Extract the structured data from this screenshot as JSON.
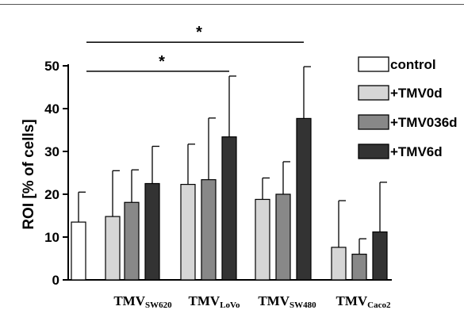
{
  "chart_data": {
    "type": "bar",
    "ylabel": "ROI [% of cells]",
    "ylim": [
      0,
      50
    ],
    "yticks": [
      0,
      10,
      20,
      30,
      40,
      50
    ],
    "grid": false,
    "legend_position": "right",
    "legend": [
      {
        "name": "control",
        "color": "#ffffff"
      },
      {
        "name": "+TMV0d",
        "color": "#d6d6d6"
      },
      {
        "name": "+TMV036d",
        "color": "#888888"
      },
      {
        "name": "+TMV6d",
        "color": "#333333"
      }
    ],
    "bars": [
      {
        "series": "control",
        "group": "control",
        "value": 13.5,
        "error": 7.0
      },
      {
        "series": "+TMV0d",
        "group": "SW620",
        "value": 14.8,
        "error": 10.7
      },
      {
        "series": "+TMV036d",
        "group": "SW620",
        "value": 18.1,
        "error": 7.6
      },
      {
        "series": "+TMV6d",
        "group": "SW620",
        "value": 22.5,
        "error": 8.7
      },
      {
        "series": "+TMV0d",
        "group": "LoVo",
        "value": 22.3,
        "error": 9.4
      },
      {
        "series": "+TMV036d",
        "group": "LoVo",
        "value": 23.4,
        "error": 14.4
      },
      {
        "series": "+TMV6d",
        "group": "LoVo",
        "value": 33.4,
        "error": 14.2
      },
      {
        "series": "+TMV0d",
        "group": "SW480",
        "value": 18.8,
        "error": 5.0
      },
      {
        "series": "+TMV036d",
        "group": "SW480",
        "value": 20.0,
        "error": 7.6
      },
      {
        "series": "+TMV6d",
        "group": "SW480",
        "value": 37.7,
        "error": 12.1
      },
      {
        "series": "+TMV0d",
        "group": "Caco2",
        "value": 7.6,
        "error": 10.9
      },
      {
        "series": "+TMV036d",
        "group": "Caco2",
        "value": 6.0,
        "error": 3.6
      },
      {
        "series": "+TMV6d",
        "group": "Caco2",
        "value": 11.2,
        "error": 11.6
      }
    ],
    "category_labels": [
      {
        "main": "TMV",
        "sub": "SW620"
      },
      {
        "main": "TMV",
        "sub": "LoVo"
      },
      {
        "main": "TMV",
        "sub": "SW480"
      },
      {
        "main": "TMV",
        "sub": "Caco2"
      }
    ],
    "significance": [
      {
        "label": "*",
        "from_bar": 0,
        "to_bar": 6,
        "y": 50.2
      },
      {
        "label": "*",
        "from_bar": 0,
        "to_bar": 9,
        "y": 57.0
      }
    ]
  }
}
